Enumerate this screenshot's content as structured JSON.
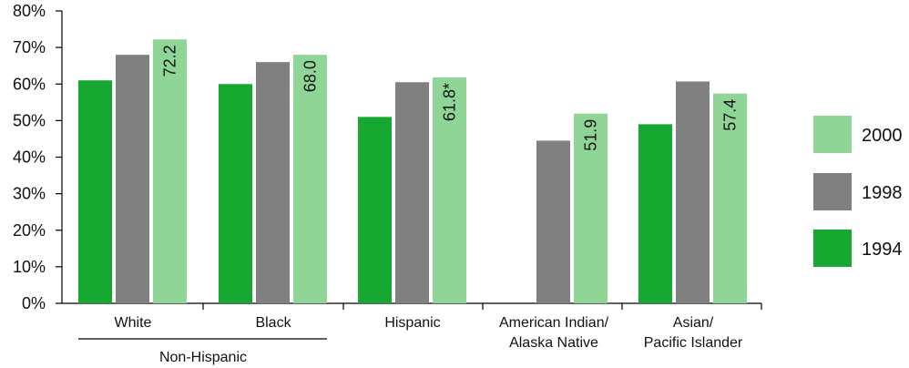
{
  "chart_data": {
    "type": "bar",
    "categories": [
      "White",
      "Black",
      "Hispanic",
      "American Indian/\nAlaska Native",
      "Asian/\nPacific Islander"
    ],
    "group_label": "Non-Hispanic",
    "series": [
      {
        "name": "1994",
        "color": "#17a832",
        "values": [
          61.0,
          60.0,
          51.0,
          null,
          49.0
        ]
      },
      {
        "name": "1998",
        "color": "#808080",
        "values": [
          68.0,
          66.0,
          60.5,
          44.5,
          60.7
        ]
      },
      {
        "name": "2000",
        "color": "#8ed596",
        "values": [
          72.2,
          68.0,
          61.8,
          51.9,
          57.4
        ]
      }
    ],
    "data_labels": [
      "72.2",
      "68.0",
      "61.8*",
      "51.9",
      "57.4"
    ],
    "ylim": [
      0,
      80
    ],
    "yticks": [
      "0%",
      "10%",
      "20%",
      "30%",
      "40%",
      "50%",
      "60%",
      "70%",
      "80%"
    ],
    "legend_order": [
      "2000",
      "1998",
      "1994"
    ],
    "legend_position": "right",
    "grid": false
  }
}
